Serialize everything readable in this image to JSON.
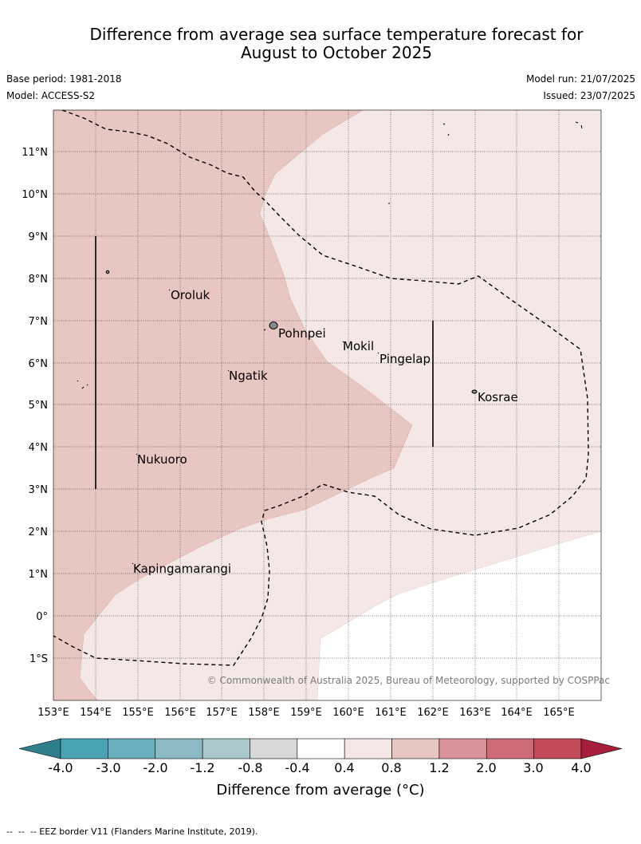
{
  "title_line1": "Difference from average sea surface temperature forecast for",
  "title_line2": "August to October 2025",
  "meta": {
    "base_period": "Base period: 1981-2018",
    "model": "Model: ACCESS-S2",
    "model_run": "Model run: 21/07/2025",
    "issued": "Issued: 23/07/2025"
  },
  "axes": {
    "lon_labels": [
      "153°E",
      "154°E",
      "155°E",
      "156°E",
      "157°E",
      "158°E",
      "159°E",
      "160°E",
      "161°E",
      "162°E",
      "163°E",
      "164°E",
      "165°E"
    ],
    "lat_labels": [
      "11°N",
      "10°N",
      "9°N",
      "8°N",
      "7°N",
      "6°N",
      "5°N",
      "4°N",
      "3°N",
      "2°N",
      "1°N",
      "0°",
      "1°S"
    ]
  },
  "places": [
    "Oroluk",
    "Pohnpei",
    "Mokil",
    "Pingelap",
    "Ngatik",
    "Kosrae",
    "Nukuoro",
    "Kapingamarangi"
  ],
  "copyright": "© Commonwealth of Australia 2025, Bureau of Meteorology, supported by COSPPac",
  "colorbar": {
    "labels": [
      "-4.0",
      "-3.0",
      "-2.0",
      "-1.2",
      "-0.8",
      "-0.4",
      "0.4",
      "0.8",
      "1.2",
      "2.0",
      "3.0",
      "4.0"
    ],
    "title": "Difference from average (°C)",
    "colors": [
      "#2f7e8c",
      "#4aa3b5",
      "#6aafbf",
      "#8cbac4",
      "#aac8cc",
      "#d5d8d7",
      "#ffffff",
      "#f5e7e6",
      "#e8c6c2",
      "#d9919a",
      "#cc6b76",
      "#c24a5a",
      "#a81f3c"
    ]
  },
  "footnote": "--  --  -- EEZ border V11 (Flanders Marine Institute, 2019).",
  "colors": {
    "warm_light": "#f5e7e6",
    "warm_mid": "#e8c6c2"
  }
}
